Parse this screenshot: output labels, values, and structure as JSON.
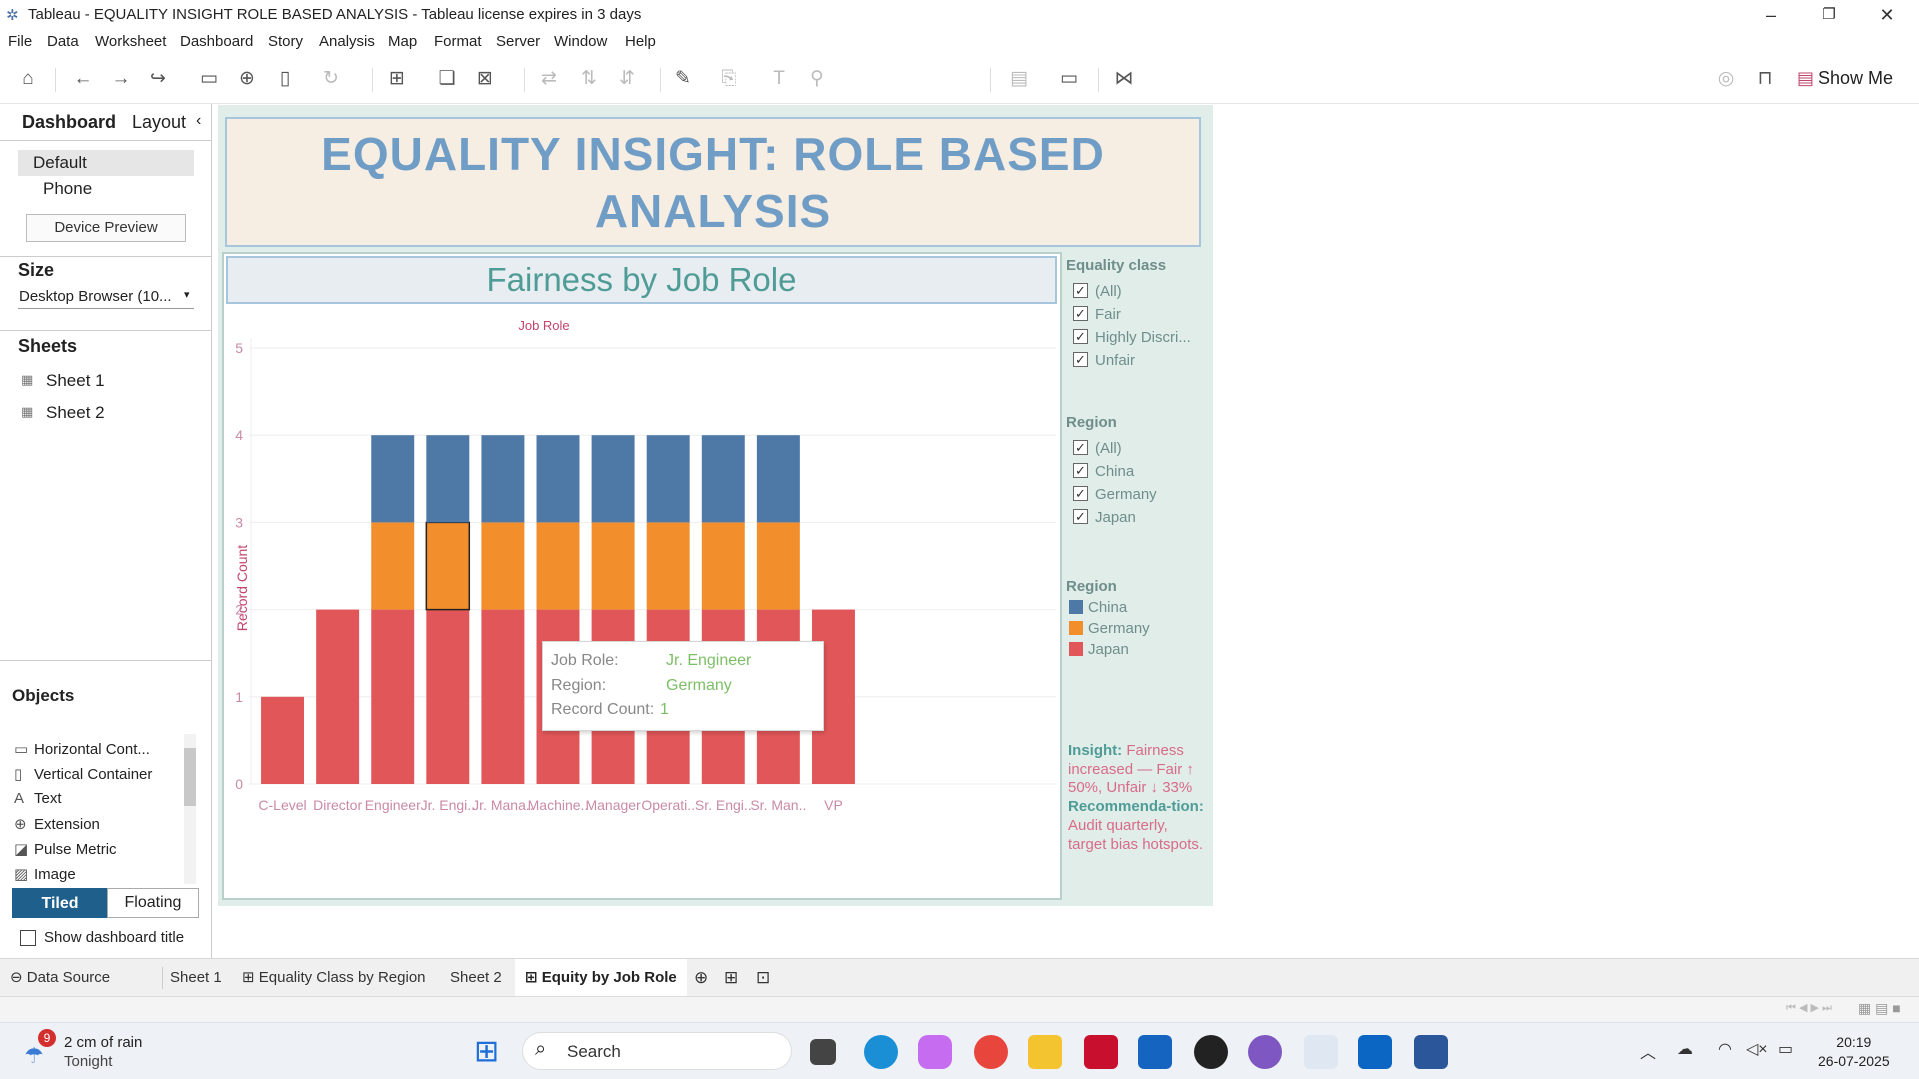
{
  "window": {
    "title": "Tableau - EQUALITY INSIGHT ROLE BASED ANALYSIS - Tableau license expires in 3 days"
  },
  "menu": [
    "File",
    "Data",
    "Worksheet",
    "Dashboard",
    "Story",
    "Analysis",
    "Map",
    "Format",
    "Server",
    "Window",
    "Help"
  ],
  "toolbar": {
    "show_me_label": "Show Me"
  },
  "sidebar": {
    "tab_dashboard": "Dashboard",
    "tab_layout": "Layout",
    "device_default": "Default",
    "device_phone": "Phone",
    "device_preview": "Device Preview",
    "size_heading": "Size",
    "size_value": "Desktop Browser (10...",
    "sheets_heading": "Sheets",
    "sheets": [
      "Sheet 1",
      "Sheet 2"
    ],
    "objects_heading": "Objects",
    "objects": [
      "Horizontal Cont...",
      "Vertical Container",
      "Text",
      "Extension",
      "Pulse Metric",
      "Image"
    ],
    "tiled_label": "Tiled",
    "floating_label": "Floating",
    "show_title_label": "Show dashboard title"
  },
  "dashboard": {
    "title_line1": "EQUALITY INSIGHT: ROLE BASED",
    "title_line2": "ANALYSIS",
    "chart_title": "Fairness by Job Role"
  },
  "chart_data": {
    "type": "bar",
    "stacked": true,
    "top_header": "Job Role",
    "ylabel": "Record Count",
    "ylim": [
      0,
      5
    ],
    "yticks": [
      0,
      1,
      2,
      3,
      4,
      5
    ],
    "grid": true,
    "categories": [
      "C-Level",
      "Director",
      "Engineer",
      "Jr. Engi..",
      "Jr. Mana..",
      "Machine..",
      "Manager",
      "Operati..",
      "Sr. Engi..",
      "Sr. Man..",
      "VP"
    ],
    "series": [
      {
        "name": "Japan",
        "color": "#e15759",
        "values": [
          1,
          2,
          2,
          2,
          2,
          2,
          2,
          2,
          2,
          2,
          2
        ]
      },
      {
        "name": "Germany",
        "color": "#f28e2b",
        "values": [
          0,
          0,
          1,
          1,
          1,
          1,
          1,
          1,
          1,
          1,
          0
        ]
      },
      {
        "name": "China",
        "color": "#4e79a7",
        "values": [
          0,
          0,
          1,
          1,
          1,
          1,
          1,
          1,
          1,
          1,
          0
        ]
      }
    ],
    "selected_mark": {
      "category_index": 3,
      "series": "Germany"
    }
  },
  "tooltip": {
    "job_role_label": "Job Role:",
    "job_role_value": "Jr. Engineer",
    "region_label": "Region:",
    "region_value": "Germany",
    "count_label": "Record Count:",
    "count_value": "1"
  },
  "filters": {
    "equality_heading": "Equality class",
    "equality_options": [
      "(All)",
      "Fair",
      "Highly Discri...",
      "Unfair"
    ],
    "region_heading": "Region",
    "region_options": [
      "(All)",
      "China",
      "Germany",
      "Japan"
    ]
  },
  "legend": {
    "heading": "Region",
    "items": [
      {
        "label": "China",
        "color": "#4e79a7"
      },
      {
        "label": "Germany",
        "color": "#f28e2b"
      },
      {
        "label": "Japan",
        "color": "#e15759"
      }
    ]
  },
  "insight": {
    "heading": "Insight:",
    "text": "Fairness increased — Fair ↑ 50%, Unfair ↓ 33%",
    "rec_heading": "Recommenda-tion:",
    "rec_text": "Audit quarterly, target bias hotspots."
  },
  "tabs": [
    "Data Source",
    "Sheet 1",
    "Equality Class by Region",
    "Sheet 2",
    "Equity by Job Role"
  ],
  "taskbar": {
    "weather_badge": "9",
    "weather_line1": "2 cm of rain",
    "weather_line2": "Tonight",
    "search_placeholder": "Search",
    "time": "20:19",
    "date": "26-07-2025"
  }
}
